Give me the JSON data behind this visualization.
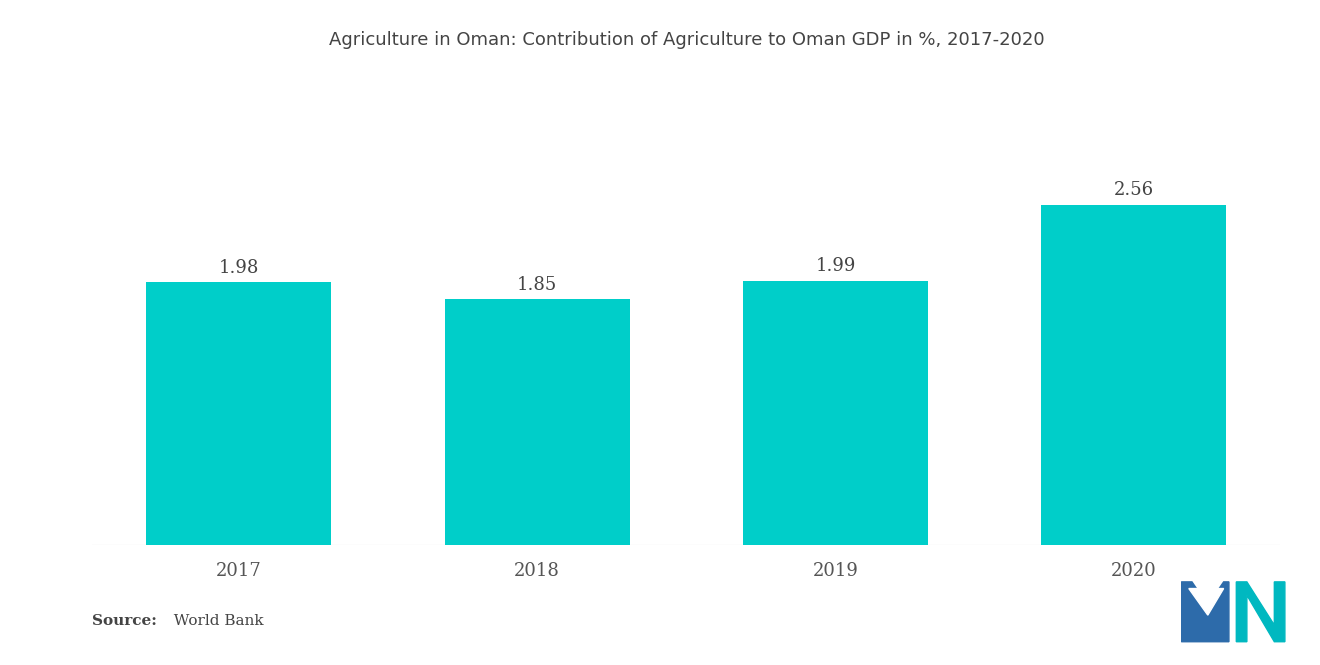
{
  "title": "Agriculture in Oman: Contribution of Agriculture to Oman GDP in %, 2017-2020",
  "categories": [
    "2017",
    "2018",
    "2019",
    "2020"
  ],
  "values": [
    1.98,
    1.85,
    1.99,
    2.56
  ],
  "bar_color": "#00CEC9",
  "background_color": "#ffffff",
  "source_label": "Source:",
  "source_value": "  World Bank",
  "title_fontsize": 13,
  "label_fontsize": 13,
  "value_fontsize": 13,
  "ylim": [
    0,
    3.5
  ]
}
